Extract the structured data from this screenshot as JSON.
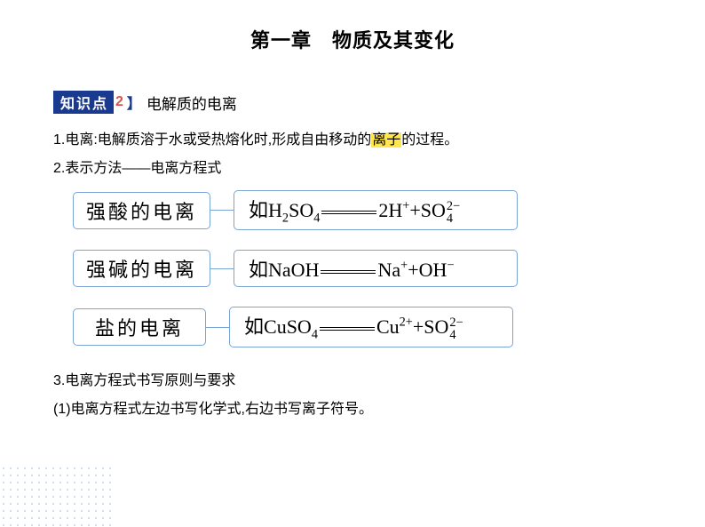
{
  "title": "第一章　物质及其变化",
  "kp": {
    "badge": "知识点",
    "num": "2",
    "topic": "电解质的电离"
  },
  "line1_pre": "1.电离:电解质溶于水或受热熔化时,形成自由移动的",
  "line1_hl": "离子",
  "line1_post": "的过程。",
  "line2": "2.表示方法——电离方程式",
  "eq_group": {
    "label_fontsize": 22,
    "formula_fontsize": 22,
    "border_color": "#7aa3d6",
    "border_radius": 5,
    "rows": [
      {
        "label": "强酸的电离",
        "prefix": "如",
        "lhs_html": "H<sub>2</sub>SO<sub>4</sub>",
        "rhs_html": "2H<sup>+</sup>+SO<span class='supsub'><span>2−</span><span>4</span></span>"
      },
      {
        "label": "强碱的电离",
        "prefix": "如",
        "lhs_html": "NaOH",
        "rhs_html": "Na<sup>+</sup>+OH<sup>−</sup>"
      },
      {
        "label": "盐的电离",
        "prefix": "如",
        "lhs_html": "CuSO<sub>4</sub>",
        "rhs_html": "Cu<sup>2+</sup>+SO<span class='supsub'><span>2−</span><span>4</span></span>"
      }
    ]
  },
  "line3": "3.电离方程式书写原则与要求",
  "line4": "(1)电离方程式左边书写化学式,右边书写离子符号。",
  "colors": {
    "badge_bg": "#1a3a8f",
    "badge_text": "#ffffff",
    "num_color": "#d9534f",
    "highlight_bg": "#ffe64d",
    "text": "#000000",
    "dots": "#8fb4e2",
    "background": "#ffffff"
  }
}
